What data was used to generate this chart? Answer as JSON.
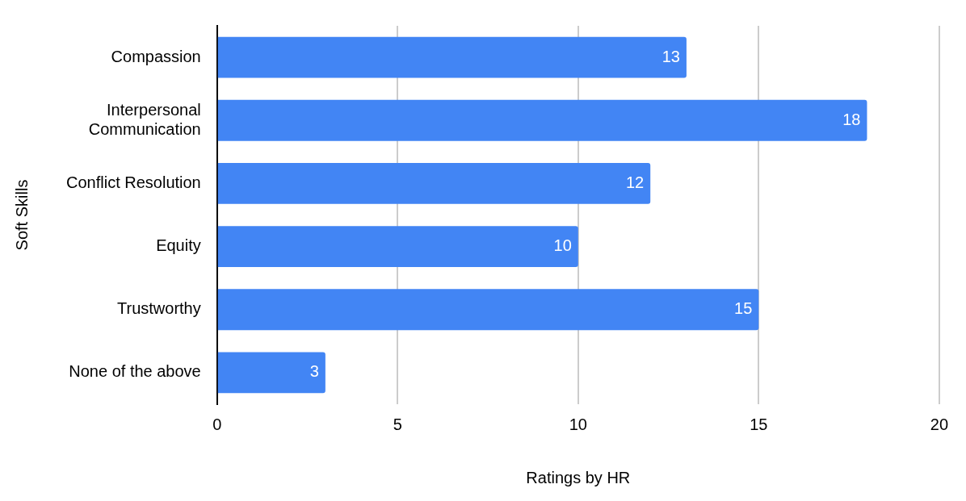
{
  "chart_data": {
    "type": "bar",
    "orientation": "horizontal",
    "xlabel": "Ratings by HR",
    "ylabel": "Soft Skills",
    "categories": [
      "Compassion",
      "Interpersonal Communication",
      "Conflict Resolution",
      "Equity",
      "Trustworthy",
      "None of the above"
    ],
    "values": [
      13,
      18,
      12,
      10,
      15,
      3
    ],
    "color": "#4285f4",
    "xlim": [
      0,
      20
    ],
    "xticks": [
      0,
      5,
      10,
      15,
      20
    ],
    "grid": "x",
    "data_labels": true,
    "legend": false
  }
}
